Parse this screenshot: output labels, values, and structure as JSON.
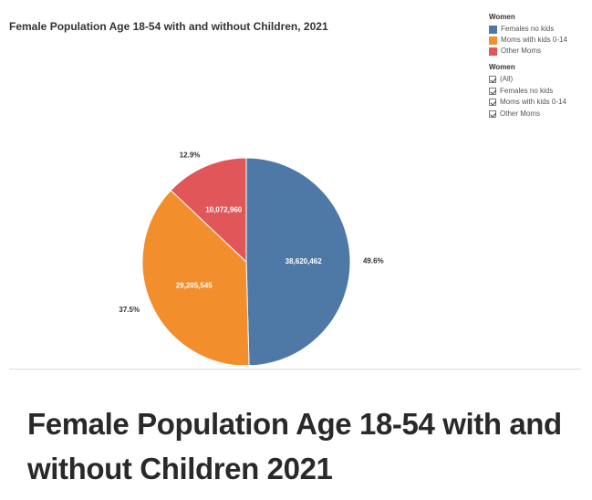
{
  "chart_data": {
    "type": "pie",
    "title": "Female Population Age 18-54 with and without Children, 2021",
    "legend_placement": "top-right",
    "slices": [
      {
        "name": "Females no kids",
        "value": 38620462,
        "value_label": "38,620,462",
        "percent_label": "49.6%",
        "color": "#4e79a7"
      },
      {
        "name": "Moms with kids 0-14",
        "value": 29205545,
        "value_label": "29,205,545",
        "percent_label": "37.5%",
        "color": "#f28e2b"
      },
      {
        "name": "Other Moms",
        "value": 10072960,
        "value_label": "10,072,960",
        "percent_label": "12.9%",
        "color": "#e15759"
      }
    ]
  },
  "legend": {
    "title": "Women",
    "items": [
      {
        "label": "Females no kids",
        "color": "#4e79a7"
      },
      {
        "label": "Moms with kids 0-14",
        "color": "#f28e2b"
      },
      {
        "label": "Other Moms",
        "color": "#e15759"
      }
    ]
  },
  "filter": {
    "title": "Women",
    "options": [
      {
        "label": "(All)",
        "checked": true
      },
      {
        "label": "Females no kids",
        "checked": true
      },
      {
        "label": "Moms with kids 0-14",
        "checked": true
      },
      {
        "label": "Other Moms",
        "checked": true
      }
    ]
  },
  "caption": "Female Population Age 18-54 with and without Children 2021"
}
